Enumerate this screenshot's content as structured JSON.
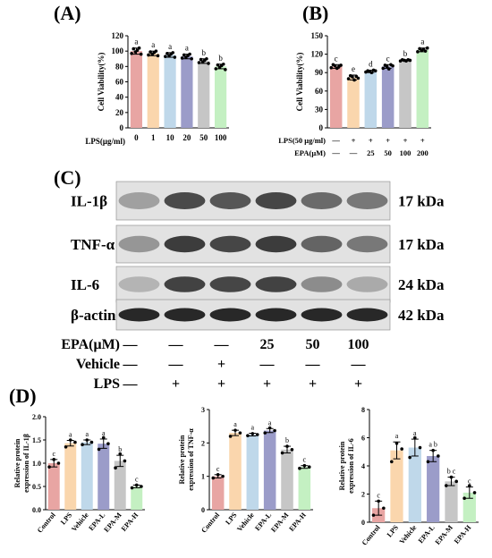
{
  "panel_letters": [
    "(A)",
    "(B)",
    "(C)",
    "(D)"
  ],
  "blot": {
    "rows": [
      {
        "label": "IL-1β",
        "kda": "17 kDa",
        "intensity": [
          0.35,
          0.78,
          0.72,
          0.8,
          0.62,
          0.55
        ]
      },
      {
        "label": "TNF-α",
        "kda": "17 kDa",
        "intensity": [
          0.4,
          0.85,
          0.8,
          0.85,
          0.65,
          0.55
        ]
      },
      {
        "label": "IL-6",
        "kda": "24 kDa",
        "intensity": [
          0.25,
          0.82,
          0.8,
          0.82,
          0.45,
          0.3
        ]
      },
      {
        "label": "β-actin",
        "kda": "42 kDa",
        "intensity": [
          0.95,
          0.95,
          0.95,
          0.95,
          0.95,
          0.95
        ]
      }
    ],
    "conditions": [
      {
        "label": "EPA(μM)",
        "values": [
          "—",
          "—",
          "—",
          "25",
          "50",
          "100"
        ]
      },
      {
        "label": "Vehicle",
        "values": [
          "—",
          "—",
          "+",
          "—",
          "—",
          "—"
        ]
      },
      {
        "label": "LPS",
        "values": [
          "—",
          "+",
          "+",
          "+",
          "+",
          "+"
        ]
      }
    ]
  },
  "chart_data": [
    {
      "panel": "(A)",
      "type": "bar",
      "categories": [
        "0",
        "1",
        "10",
        "20",
        "50",
        "100"
      ],
      "values": [
        100,
        97,
        95,
        93,
        87,
        80
      ],
      "errors": [
        4,
        3,
        3,
        3,
        3,
        3
      ],
      "points": [
        [
          97,
          103,
          99,
          101,
          104,
          96
        ],
        [
          95,
          99,
          96,
          98,
          100,
          94
        ],
        [
          93,
          97,
          94,
          96,
          98,
          92
        ],
        [
          91,
          95,
          92,
          94,
          96,
          90
        ],
        [
          85,
          89,
          86,
          88,
          90,
          84
        ],
        [
          77,
          82,
          79,
          81,
          83,
          76
        ]
      ],
      "letters": [
        "a",
        "a",
        "a",
        "a",
        "b",
        "b"
      ],
      "colors": [
        "#e8a5a3",
        "#fad6ad",
        "#bfd8ea",
        "#9b9cc9",
        "#c6c6c6",
        "#c4f0c2"
      ],
      "xlabel": "LPS(μg/ml)",
      "ylabel": "Cell Viability(%)",
      "ylim": [
        0,
        120
      ],
      "yticks": [
        0,
        20,
        40,
        60,
        80,
        100,
        120
      ]
    },
    {
      "panel": "(B)",
      "type": "bar",
      "categories": [
        "",
        "",
        "",
        "",
        "",
        ""
      ],
      "values": [
        100,
        82,
        92,
        100,
        110,
        127
      ],
      "errors": [
        3,
        4,
        2,
        3,
        1,
        3
      ],
      "points": [
        [
          98,
          103,
          101,
          97,
          100,
          102
        ],
        [
          80,
          85,
          83,
          78,
          84,
          81
        ],
        [
          91,
          93,
          92,
          90,
          94,
          93
        ],
        [
          97,
          102,
          100,
          96,
          103,
          101
        ],
        [
          109,
          111,
          110,
          109,
          111,
          110
        ],
        [
          124,
          129,
          126,
          128,
          125,
          130
        ]
      ],
      "letters": [
        "c",
        "e",
        "d",
        "c",
        "b",
        "a"
      ],
      "colors": [
        "#e8a5a3",
        "#fad6ad",
        "#bfd8ea",
        "#9b9cc9",
        "#c6c6c6",
        "#c4f0c2"
      ],
      "ylabel": "Cell Viability(%)",
      "ylim": [
        0,
        150
      ],
      "yticks": [
        0,
        30,
        60,
        90,
        120,
        150
      ],
      "condition_rows": [
        {
          "label": "LPS(50 μg/ml)",
          "values": [
            "—",
            "+",
            "+",
            "+",
            "+",
            "+"
          ]
        },
        {
          "label": "EPA(μM)",
          "values": [
            "—",
            "—",
            "25",
            "50",
            "100",
            "200"
          ]
        }
      ]
    },
    {
      "panel": "(D)",
      "type": "bar",
      "categories": [
        "Control",
        "LPS",
        "Vehicle",
        "EPA-L",
        "EPA-M",
        "EPA-H"
      ],
      "values": [
        1.0,
        1.43,
        1.45,
        1.42,
        1.05,
        0.5
      ],
      "errors": [
        0.08,
        0.06,
        0.05,
        0.1,
        0.12,
        0.03
      ],
      "points": [
        [
          0.92,
          1.08,
          1.0
        ],
        [
          1.35,
          1.5,
          1.45
        ],
        [
          1.4,
          1.5,
          1.45
        ],
        [
          1.3,
          1.55,
          1.42
        ],
        [
          0.9,
          1.2,
          1.05
        ],
        [
          0.47,
          0.53,
          0.5
        ]
      ],
      "letters": [
        "c",
        "a",
        "a",
        "a",
        "b",
        "c"
      ],
      "colors": [
        "#e8a5a3",
        "#fad6ad",
        "#bfd8ea",
        "#9b9cc9",
        "#c6c6c6",
        "#c4f0c2"
      ],
      "ylabel": "Relative protein expression of IL-1β",
      "ylim": [
        0,
        2.0
      ],
      "yticks": [
        0.0,
        0.5,
        1.0,
        1.5,
        2.0
      ]
    },
    {
      "panel": "(D)",
      "type": "bar",
      "categories": [
        "Control",
        "LPS",
        "Vehicle",
        "EPA-L",
        "EPA-M",
        "EPA-H"
      ],
      "values": [
        1.0,
        2.3,
        2.25,
        2.37,
        1.8,
        1.28
      ],
      "errors": [
        0.05,
        0.08,
        0.04,
        0.06,
        0.1,
        0.04
      ],
      "points": [
        [
          0.95,
          1.05,
          1.0
        ],
        [
          2.2,
          2.38,
          2.3
        ],
        [
          2.22,
          2.28,
          2.25
        ],
        [
          2.3,
          2.45,
          2.37
        ],
        [
          1.7,
          1.9,
          1.8
        ],
        [
          1.24,
          1.32,
          1.28
        ]
      ],
      "letters": [
        "c",
        "a",
        "a",
        "a",
        "b",
        "c"
      ],
      "colors": [
        "#e8a5a3",
        "#fad6ad",
        "#bfd8ea",
        "#9b9cc9",
        "#c6c6c6",
        "#c4f0c2"
      ],
      "ylabel": "Relative protein expression of TNF-α",
      "ylim": [
        0,
        3
      ],
      "yticks": [
        0,
        1,
        2,
        3
      ]
    },
    {
      "panel": "(D)",
      "type": "bar",
      "categories": [
        "Control",
        "LPS",
        "Vehicle",
        "EPA-L",
        "EPA-M",
        "EPA-H"
      ],
      "values": [
        1.0,
        5.1,
        5.3,
        4.7,
        2.9,
        2.1
      ],
      "errors": [
        0.5,
        0.6,
        0.6,
        0.4,
        0.3,
        0.4
      ],
      "points": [
        [
          0.5,
          1.5,
          1.0
        ],
        [
          4.3,
          5.6,
          5.2
        ],
        [
          4.6,
          6.0,
          5.3
        ],
        [
          4.3,
          5.1,
          4.7
        ],
        [
          2.6,
          3.2,
          2.9
        ],
        [
          1.7,
          2.6,
          2.1
        ]
      ],
      "letters": [
        "c",
        "a",
        "a",
        "a b",
        "b c",
        "c"
      ],
      "colors": [
        "#e8a5a3",
        "#fad6ad",
        "#bfd8ea",
        "#9b9cc9",
        "#c6c6c6",
        "#c4f0c2"
      ],
      "ylabel": "Relative protein expression of IL-6",
      "ylim": [
        0,
        8
      ],
      "yticks": [
        0,
        2,
        4,
        6,
        8
      ]
    }
  ]
}
